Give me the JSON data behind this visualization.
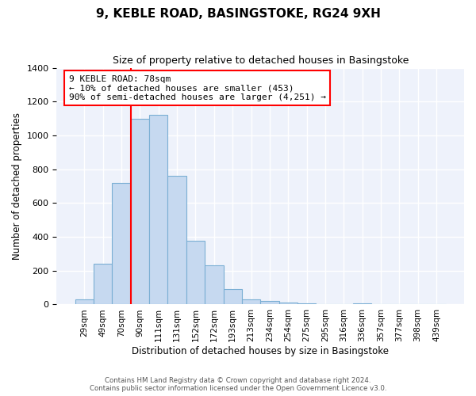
{
  "title1": "9, KEBLE ROAD, BASINGSTOKE, RG24 9XH",
  "title2": "Size of property relative to detached houses in Basingstoke",
  "xlabel": "Distribution of detached houses by size in Basingstoke",
  "ylabel": "Number of detached properties",
  "bar_labels": [
    "29sqm",
    "49sqm",
    "70sqm",
    "90sqm",
    "111sqm",
    "131sqm",
    "152sqm",
    "172sqm",
    "193sqm",
    "213sqm",
    "234sqm",
    "254sqm",
    "275sqm",
    "295sqm",
    "316sqm",
    "336sqm",
    "357sqm",
    "377sqm",
    "398sqm",
    "439sqm"
  ],
  "bar_values": [
    30,
    240,
    720,
    1100,
    1120,
    760,
    375,
    230,
    90,
    30,
    20,
    10,
    5,
    0,
    0,
    5,
    0,
    0,
    0,
    0
  ],
  "bar_color": "#c6d9f0",
  "bar_edge_color": "#7bafd4",
  "vline_color": "red",
  "annotation_line1": "9 KEBLE ROAD: 78sqm",
  "annotation_line2": "← 10% of detached houses are smaller (453)",
  "annotation_line3": "90% of semi-detached houses are larger (4,251) →",
  "annotation_box_color": "white",
  "annotation_box_edge": "red",
  "ylim": [
    0,
    1400
  ],
  "yticks": [
    0,
    200,
    400,
    600,
    800,
    1000,
    1200,
    1400
  ],
  "footer1": "Contains HM Land Registry data © Crown copyright and database right 2024.",
  "footer2": "Contains public sector information licensed under the Open Government Licence v3.0.",
  "bg_color": "#eef2fb",
  "grid_color": "#ffffff",
  "vline_x_idx": 2.5
}
